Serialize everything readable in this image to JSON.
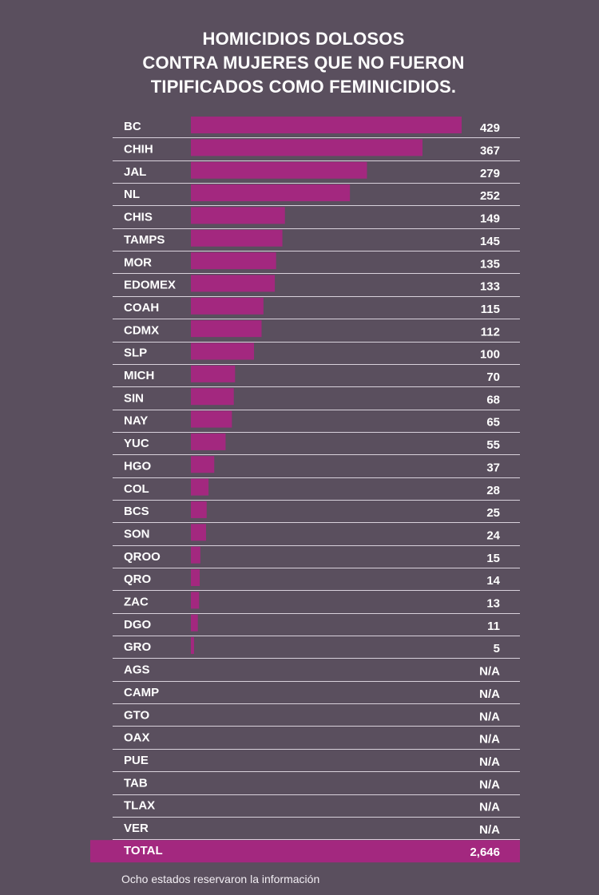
{
  "colors": {
    "background": "#5a4f5e",
    "bar": "#a3287f",
    "text": "#ffffff",
    "row_line": "#d9d2dc"
  },
  "chart_data": {
    "type": "bar",
    "orientation": "horizontal",
    "title": "HOMICIDIOS DOLOSOS CONTRA MUJERES QUE NO FUERON TIPIFICADOS COMO FEMINICIDIOS.",
    "title_lines": [
      "HOMICIDIOS DOLOSOS",
      "CONTRA MUJERES QUE NO FUERON",
      "TIPIFICADOS COMO FEMINICIDIOS."
    ],
    "categories": [
      "BC",
      "CHIH",
      "JAL",
      "NL",
      "CHIS",
      "TAMPS",
      "MOR",
      "EDOMEX",
      "COAH",
      "CDMX",
      "SLP",
      "MICH",
      "SIN",
      "NAY",
      "YUC",
      "HGO",
      "COL",
      "BCS",
      "SON",
      "QROO",
      "QRO",
      "ZAC",
      "DGO",
      "GRO",
      "AGS",
      "CAMP",
      "GTO",
      "OAX",
      "PUE",
      "TAB",
      "TLAX",
      "VER"
    ],
    "values": [
      429,
      367,
      279,
      252,
      149,
      145,
      135,
      133,
      115,
      112,
      100,
      70,
      68,
      65,
      55,
      37,
      28,
      25,
      24,
      15,
      14,
      13,
      11,
      5,
      null,
      null,
      null,
      null,
      null,
      null,
      null,
      null
    ],
    "value_labels": [
      "429",
      "367",
      "279",
      "252",
      "149",
      "145",
      "135",
      "133",
      "115",
      "112",
      "100",
      "70",
      "68",
      "65",
      "55",
      "37",
      "28",
      "25",
      "24",
      "15",
      "14",
      "13",
      "11",
      "5",
      "N/A",
      "N/A",
      "N/A",
      "N/A",
      "N/A",
      "N/A",
      "N/A",
      "N/A"
    ],
    "xlim": [
      0,
      429
    ],
    "total": {
      "label": "TOTAL",
      "value": 2646,
      "value_label": "2,646"
    },
    "grid": false,
    "legend": "none"
  },
  "footnote": "Ocho estados reservaron la información"
}
